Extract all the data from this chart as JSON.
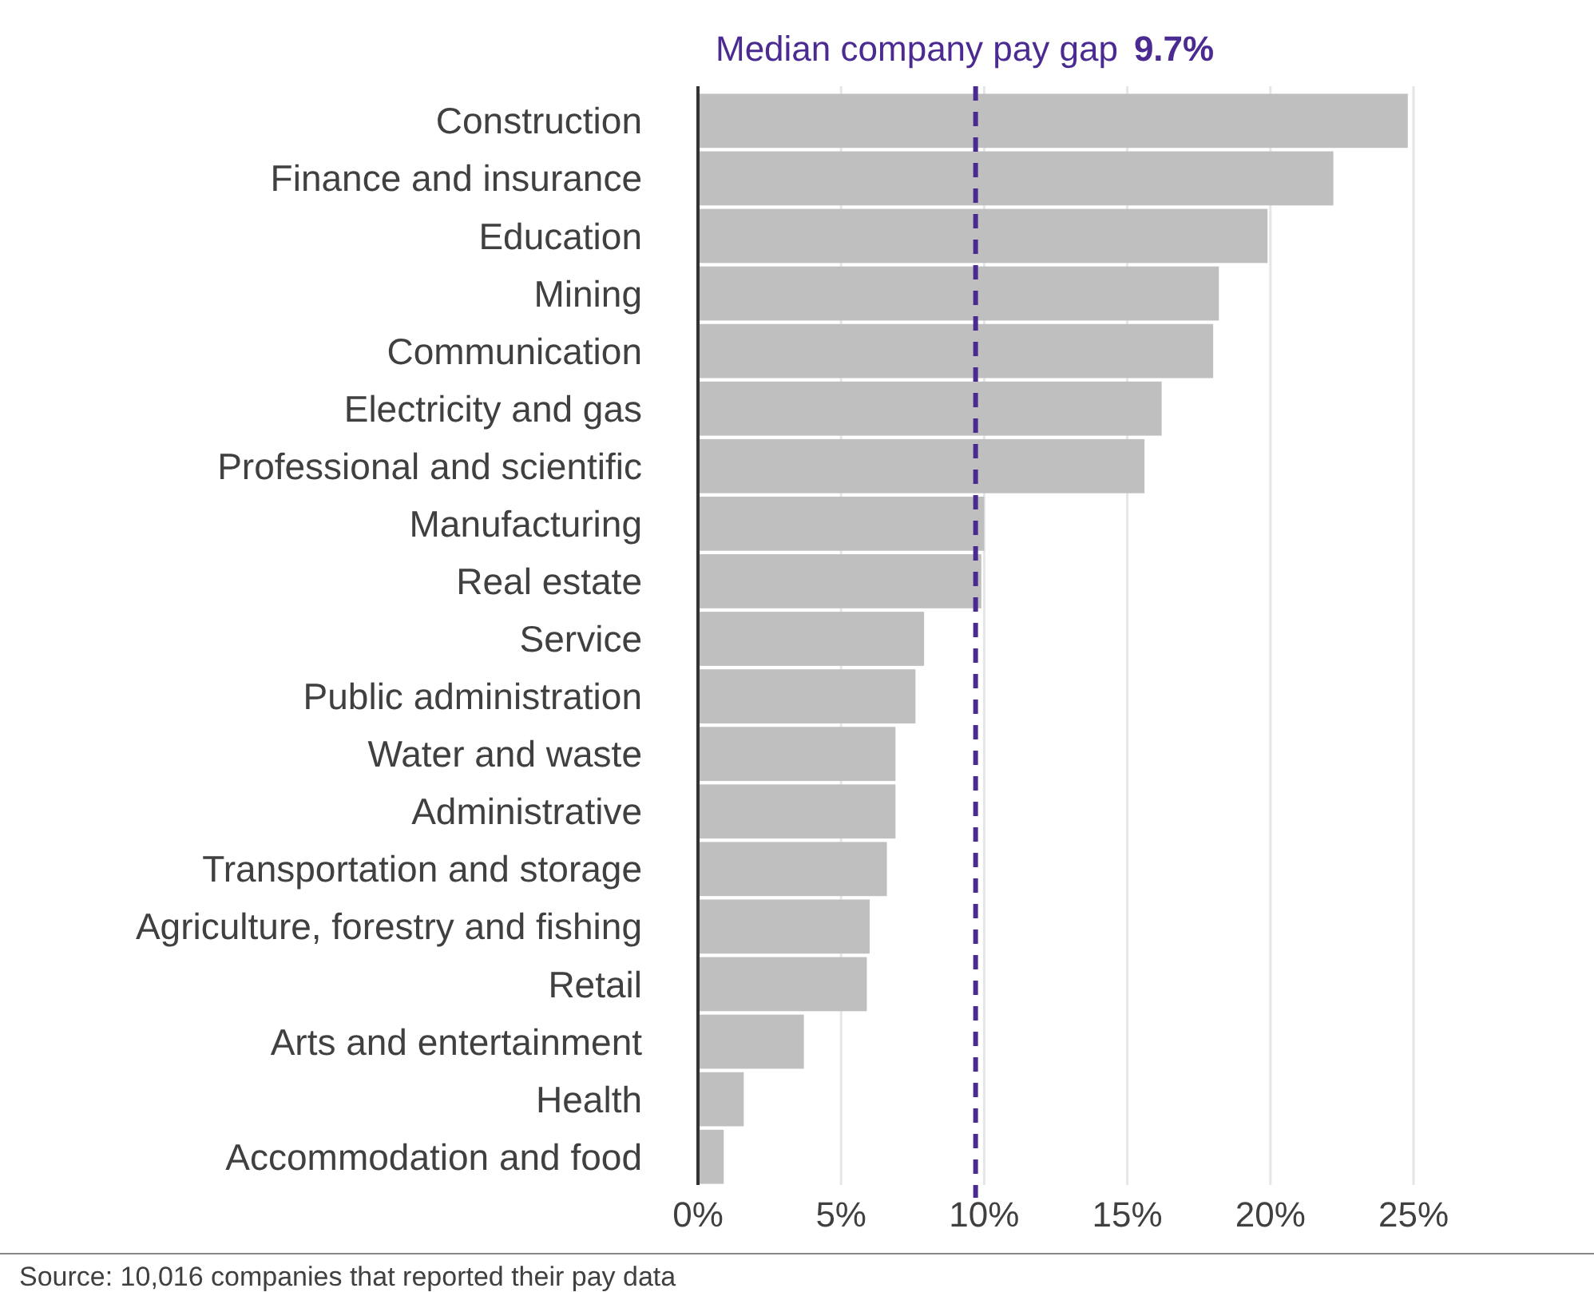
{
  "chart_data": {
    "type": "bar",
    "orientation": "horizontal",
    "categories": [
      "Construction",
      "Finance and insurance",
      "Education",
      "Mining",
      "Communication",
      "Electricity and gas",
      "Professional and scientific",
      "Manufacturing",
      "Real estate",
      "Service",
      "Public administration",
      "Water and waste",
      "Administrative",
      "Transportation and storage",
      "Agriculture, forestry and fishing",
      "Retail",
      "Arts and entertainment",
      "Health",
      "Accommodation and food"
    ],
    "values": [
      24.8,
      22.2,
      19.9,
      18.2,
      18.0,
      16.2,
      15.6,
      10.0,
      9.9,
      7.9,
      7.6,
      6.9,
      6.9,
      6.6,
      6.0,
      5.9,
      3.7,
      1.6,
      0.9
    ],
    "color": "#bfbfbf",
    "xlim": [
      0,
      25
    ],
    "xticks": [
      {
        "value": 0,
        "label": "0%"
      },
      {
        "value": 5,
        "label": "5%"
      },
      {
        "value": 10,
        "label": "10%"
      },
      {
        "value": 15,
        "label": "15%"
      },
      {
        "value": 20,
        "label": "20%"
      },
      {
        "value": 25,
        "label": "25%"
      }
    ],
    "grid": "x",
    "ref_lines": [
      {
        "axis": "x",
        "value": 9.7,
        "label": "Median company pay gap 9.7%",
        "color": "#4b2a91",
        "line_style": "dashed"
      }
    ],
    "annotations": [
      "Source: 10,016 companies that reported their pay data"
    ]
  }
}
